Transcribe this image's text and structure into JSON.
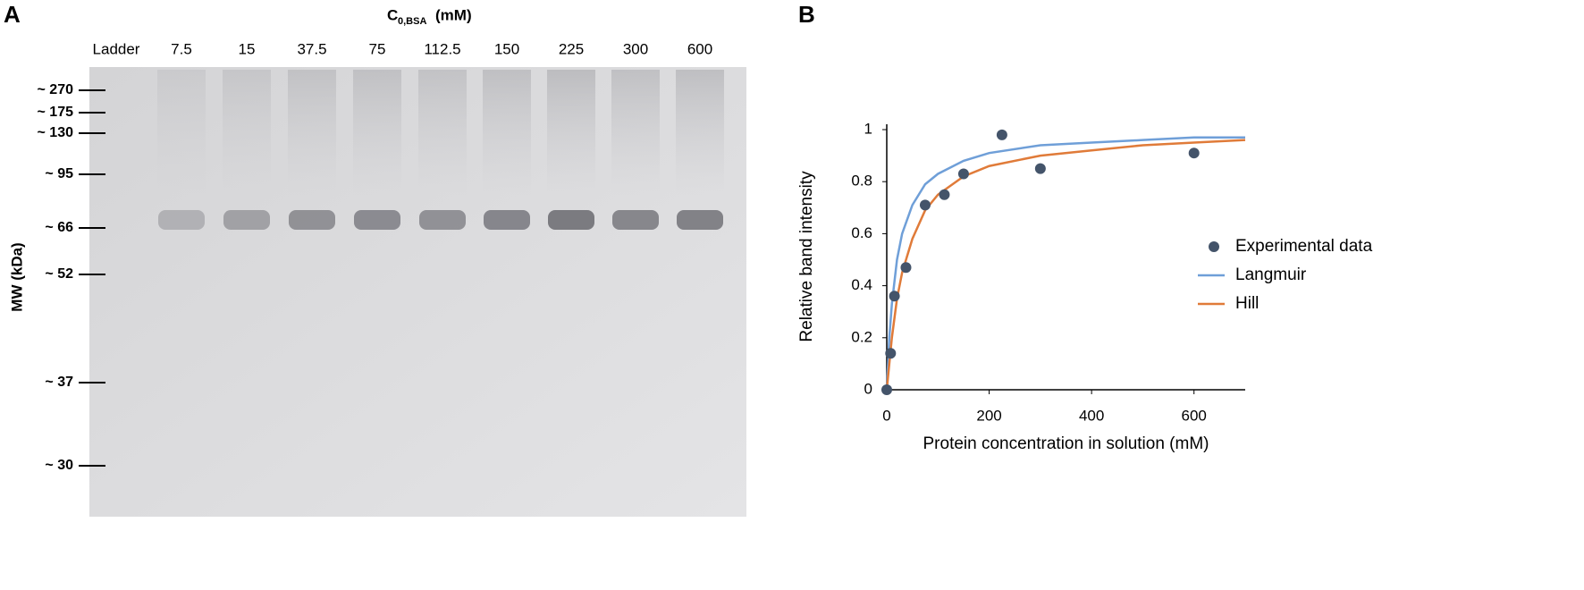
{
  "panel_a": {
    "label": "A",
    "title": {
      "main": "C",
      "subscript": "0,BSA",
      "unit": "(mM)"
    },
    "lanes": [
      "Ladder",
      "7.5",
      "15",
      "37.5",
      "75",
      "112.5",
      "150",
      "225",
      "300",
      "600"
    ],
    "y_label": "MW (kDa)",
    "markers": [
      "~ 270",
      "~ 175",
      "~ 130",
      "~ 95",
      "~ 66",
      "~ 52",
      "~ 37",
      "~ 30"
    ]
  },
  "panel_b": {
    "label": "B"
  },
  "chart_data": {
    "type": "scatter",
    "x_label": "Protein concentration in solution (mM)",
    "y_label": "Relative band intensity",
    "xlim": [
      0,
      700
    ],
    "xticks": [
      0,
      200,
      400,
      600
    ],
    "ylim": [
      0,
      1
    ],
    "yticks": [
      0,
      0.2,
      0.4,
      0.6,
      0.8,
      1
    ],
    "legend": "right",
    "series": [
      {
        "name": "Experimental data",
        "type": "scatter",
        "color": "#44546a",
        "x": [
          0,
          7.5,
          15,
          37.5,
          75,
          112.5,
          150,
          225,
          300,
          600
        ],
        "values": [
          0,
          0.14,
          0.36,
          0.47,
          0.71,
          0.75,
          0.83,
          0.98,
          0.85,
          0.91
        ]
      },
      {
        "name": "Langmuir",
        "type": "line",
        "color": "#6f9fd8",
        "x": [
          0,
          5,
          10,
          20,
          30,
          50,
          75,
          100,
          150,
          200,
          300,
          400,
          500,
          600,
          700
        ],
        "values": [
          0,
          0.2,
          0.33,
          0.5,
          0.6,
          0.71,
          0.79,
          0.83,
          0.88,
          0.91,
          0.94,
          0.95,
          0.96,
          0.97,
          0.97
        ]
      },
      {
        "name": "Hill",
        "type": "line",
        "color": "#e07b39",
        "x": [
          0,
          5,
          10,
          20,
          30,
          50,
          75,
          100,
          150,
          200,
          300,
          400,
          500,
          600,
          700
        ],
        "values": [
          0,
          0.1,
          0.2,
          0.35,
          0.45,
          0.58,
          0.69,
          0.75,
          0.82,
          0.86,
          0.9,
          0.92,
          0.94,
          0.95,
          0.96
        ]
      }
    ]
  }
}
